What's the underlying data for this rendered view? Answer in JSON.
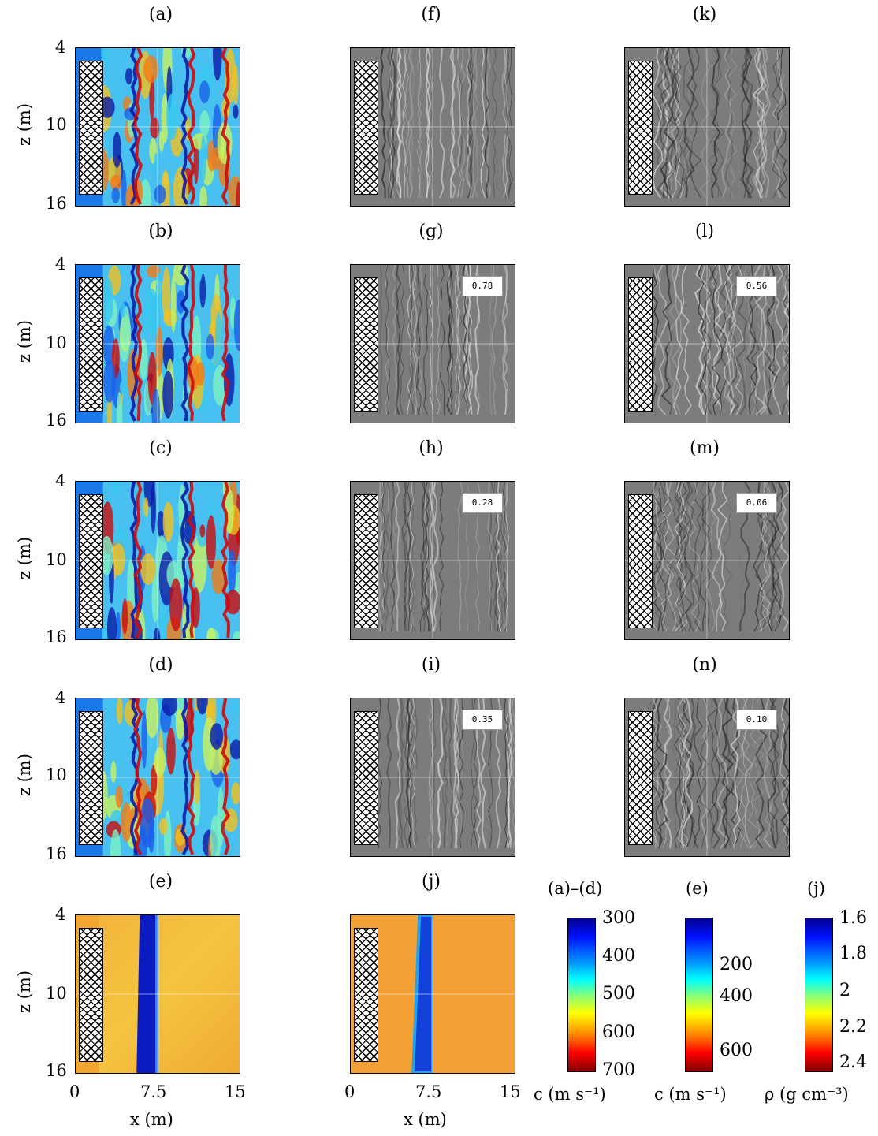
{
  "panel_titles": {
    "a": "(a)",
    "b": "(b)",
    "c": "(c)",
    "d": "(d)",
    "e": "(e)",
    "f": "(f)",
    "g": "(g)",
    "h": "(h)",
    "i": "(i)",
    "j": "(j)",
    "k": "(k)",
    "l": "(l)",
    "m": "(m)",
    "n": "(n)"
  },
  "correlation_labels": {
    "g": "0.78",
    "h": "0.28",
    "i": "0.35",
    "l": "0.56",
    "m": "0.06",
    "n": "0.10"
  },
  "axes": {
    "ylabel": "z (m)",
    "xlabel": "x (m)",
    "yticks": [
      "4",
      "10",
      "16"
    ],
    "xticks": [
      "0",
      "7.5",
      "15"
    ]
  },
  "colorbars": {
    "ad": {
      "title": "(a)–(d)",
      "ticks": [
        "300",
        "400",
        "500",
        "600",
        "700"
      ],
      "unit": "c (m s⁻¹)"
    },
    "e": {
      "title": "(e)",
      "ticks": [
        "200",
        "400",
        "600"
      ],
      "unit": "c (m s⁻¹)"
    },
    "j": {
      "title": "(j)",
      "ticks": [
        "1.6",
        "1.8",
        "2",
        "2.2",
        "2.4"
      ],
      "unit": "ρ (g cm⁻³)"
    }
  },
  "colors": {
    "jet_blue": "#0a1aa8",
    "jet_cyan": "#3ac8f0",
    "jet_yellow": "#f2c020",
    "jet_red": "#cc0b0b",
    "grey_bg": "#7c7c7c"
  }
}
